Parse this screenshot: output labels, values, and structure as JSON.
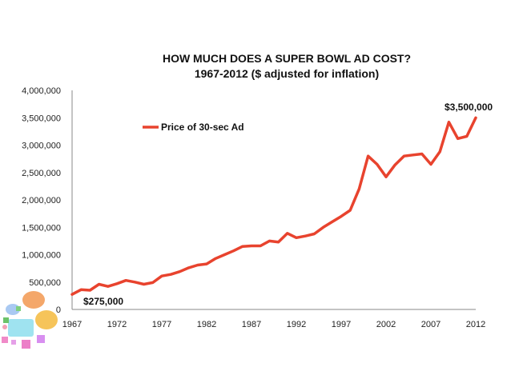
{
  "chart_data": {
    "type": "line",
    "title": "HOW MUCH DOES A SUPER BOWL AD COST?",
    "subtitle": "1967-2012 ($ adjusted for inflation)",
    "xlabel": "",
    "ylabel": "",
    "xlim": [
      1967,
      2012
    ],
    "ylim": [
      0,
      4000000
    ],
    "x_ticks": [
      1967,
      1972,
      1977,
      1982,
      1987,
      1992,
      1997,
      2002,
      2007,
      2012
    ],
    "y_ticks": [
      0,
      500000,
      1000000,
      1500000,
      2000000,
      2500000,
      3000000,
      3500000,
      4000000
    ],
    "y_tick_labels": [
      "0",
      "500,000",
      "1,000,000",
      "1,500,000",
      "2,000,000",
      "2,500,000",
      "3,000,000",
      "3,500,000",
      "4,000,000"
    ],
    "x": [
      1967,
      1968,
      1969,
      1970,
      1971,
      1972,
      1973,
      1974,
      1975,
      1976,
      1977,
      1978,
      1979,
      1980,
      1981,
      1982,
      1983,
      1984,
      1985,
      1986,
      1987,
      1988,
      1989,
      1990,
      1991,
      1992,
      1993,
      1994,
      1995,
      1996,
      1997,
      1998,
      1999,
      2000,
      2001,
      2002,
      2003,
      2004,
      2005,
      2006,
      2007,
      2008,
      2009,
      2010,
      2011,
      2012
    ],
    "series": [
      {
        "name": "Price of 30-sec Ad",
        "color": "#e8432e",
        "values": [
          275000,
          360000,
          350000,
          460000,
          420000,
          470000,
          530000,
          500000,
          460000,
          490000,
          610000,
          640000,
          690000,
          760000,
          810000,
          830000,
          930000,
          1000000,
          1070000,
          1150000,
          1160000,
          1160000,
          1250000,
          1230000,
          1390000,
          1310000,
          1340000,
          1380000,
          1500000,
          1600000,
          1700000,
          1810000,
          2200000,
          2800000,
          2650000,
          2420000,
          2640000,
          2800000,
          2820000,
          2840000,
          2650000,
          2880000,
          3420000,
          3120000,
          3160000,
          3500000
        ]
      }
    ],
    "annotations": [
      {
        "label": "$275,000",
        "x": 1967,
        "y": 275000
      },
      {
        "label": "$3,500,000",
        "x": 2012,
        "y": 3500000
      }
    ],
    "grid": false,
    "legend": "top-left"
  }
}
